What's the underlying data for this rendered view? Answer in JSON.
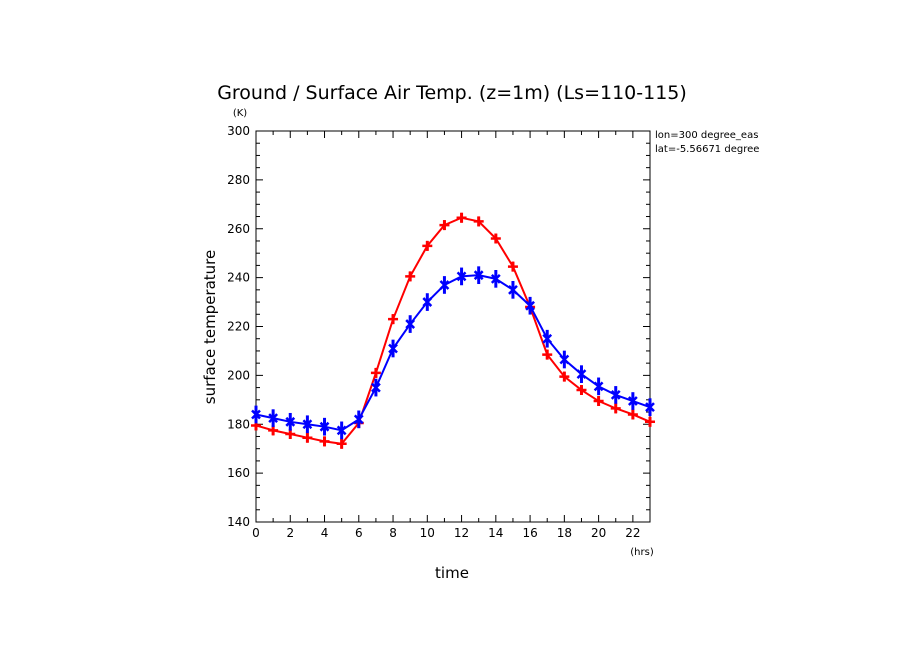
{
  "chart_data": {
    "type": "line",
    "title": "Ground / Surface Air Temp. (z=1m) (Ls=110-115)",
    "xlabel": "time",
    "ylabel": "surface temperature",
    "x_unit": "(hrs)",
    "y_unit": "(K)",
    "xlim": [
      0,
      23
    ],
    "ylim": [
      140,
      300
    ],
    "x_ticks": [
      0,
      2,
      4,
      6,
      8,
      10,
      12,
      14,
      16,
      18,
      20,
      22
    ],
    "y_ticks": [
      140,
      160,
      180,
      200,
      220,
      240,
      260,
      280,
      300
    ],
    "annotations": [
      "lon=300 degree_eas",
      "lat=-5.56671 degree"
    ],
    "x": [
      0,
      1,
      2,
      3,
      4,
      5,
      6,
      7,
      8,
      9,
      10,
      11,
      12,
      13,
      14,
      15,
      16,
      17,
      18,
      19,
      20,
      21,
      22,
      23
    ],
    "series": [
      {
        "color": "#ff0000",
        "values": [
          179.5,
          177.5,
          176,
          174.5,
          173,
          172,
          180.5,
          201,
          223,
          240.5,
          253,
          261.5,
          264.5,
          263,
          256,
          244.5,
          228,
          208.5,
          199.5,
          194,
          189.5,
          186.5,
          184,
          181
        ],
        "error": 1.2
      },
      {
        "color": "#0000ff",
        "values": [
          184,
          182.5,
          181,
          180,
          179,
          177.5,
          182,
          195,
          211,
          221,
          230,
          237,
          240.5,
          241,
          239.5,
          235,
          228.5,
          215,
          206.5,
          200.5,
          195.5,
          192,
          189.5,
          187
        ],
        "error": 2.8
      }
    ]
  }
}
